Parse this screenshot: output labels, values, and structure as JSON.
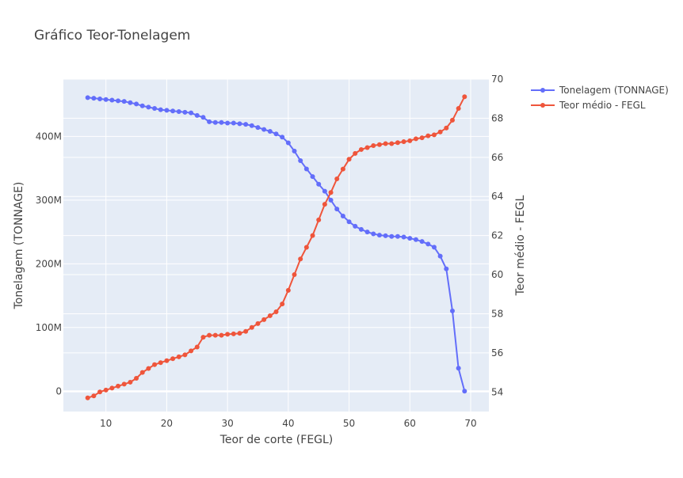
{
  "chart_data": {
    "type": "line",
    "title": "Gráfico Teor-Tonelagem",
    "xlabel": "Teor de corte (FEGL)",
    "ylabel": "Tonelagem (TONNAGE)",
    "y2label": "Teor médio - FEGL",
    "xlim": [
      3,
      73
    ],
    "ylim": [
      -32000000,
      490000000
    ],
    "y2lim": [
      53,
      70
    ],
    "xticks": [
      "10",
      "20",
      "30",
      "40",
      "50",
      "60",
      "70"
    ],
    "yticks": [
      "0",
      "100M",
      "200M",
      "300M",
      "400M"
    ],
    "y2ticks": [
      "54",
      "56",
      "58",
      "60",
      "62",
      "64",
      "66",
      "68",
      "70"
    ],
    "grid": true,
    "legend_position": "top-right",
    "plot_background": "#e5ecf6",
    "x": [
      7,
      8,
      9,
      10,
      11,
      12,
      13,
      14,
      15,
      16,
      17,
      18,
      19,
      20,
      21,
      22,
      23,
      24,
      25,
      26,
      27,
      28,
      29,
      30,
      31,
      32,
      33,
      34,
      35,
      36,
      37,
      38,
      39,
      40,
      41,
      42,
      43,
      44,
      45,
      46,
      47,
      48,
      49,
      50,
      51,
      52,
      53,
      54,
      55,
      56,
      57,
      58,
      59,
      60,
      61,
      62,
      63,
      64,
      65,
      66,
      67,
      68,
      69
    ],
    "series": [
      {
        "name": "Tonelagem (TONNAGE)",
        "axis": "y",
        "color": "#636efa",
        "values": [
          461000000,
          460000000,
          459000000,
          458000000,
          457000000,
          456000000,
          455000000,
          453000000,
          451000000,
          448000000,
          446000000,
          444000000,
          442000000,
          441000000,
          440000000,
          439000000,
          438000000,
          437000000,
          433000000,
          430000000,
          423000000,
          422000000,
          422000000,
          421000000,
          421000000,
          420000000,
          419000000,
          417000000,
          414000000,
          411000000,
          408000000,
          404000000,
          399000000,
          390000000,
          377000000,
          362000000,
          349000000,
          337000000,
          325000000,
          314000000,
          300000000,
          286000000,
          275000000,
          266000000,
          259000000,
          254000000,
          250000000,
          247000000,
          245000000,
          244000000,
          243000000,
          243000000,
          242000000,
          240000000,
          238000000,
          235000000,
          231000000,
          226000000,
          212000000,
          192000000,
          126000000,
          36000000,
          0
        ]
      },
      {
        "name": "Teor médio - FEGL",
        "axis": "y2",
        "color": "#ef553b",
        "values": [
          53.7,
          53.8,
          54.0,
          54.1,
          54.2,
          54.3,
          54.4,
          54.5,
          54.7,
          55.0,
          55.2,
          55.4,
          55.5,
          55.6,
          55.7,
          55.8,
          55.9,
          56.1,
          56.3,
          56.8,
          56.9,
          56.9,
          56.9,
          56.95,
          56.97,
          57.0,
          57.1,
          57.3,
          57.5,
          57.7,
          57.9,
          58.1,
          58.5,
          59.2,
          60.0,
          60.8,
          61.4,
          62.0,
          62.8,
          63.6,
          64.2,
          64.9,
          65.4,
          65.9,
          66.2,
          66.4,
          66.5,
          66.6,
          66.65,
          66.7,
          66.7,
          66.75,
          66.8,
          66.85,
          66.95,
          67.0,
          67.1,
          67.15,
          67.3,
          67.5,
          67.9,
          68.5,
          69.1
        ]
      }
    ]
  }
}
